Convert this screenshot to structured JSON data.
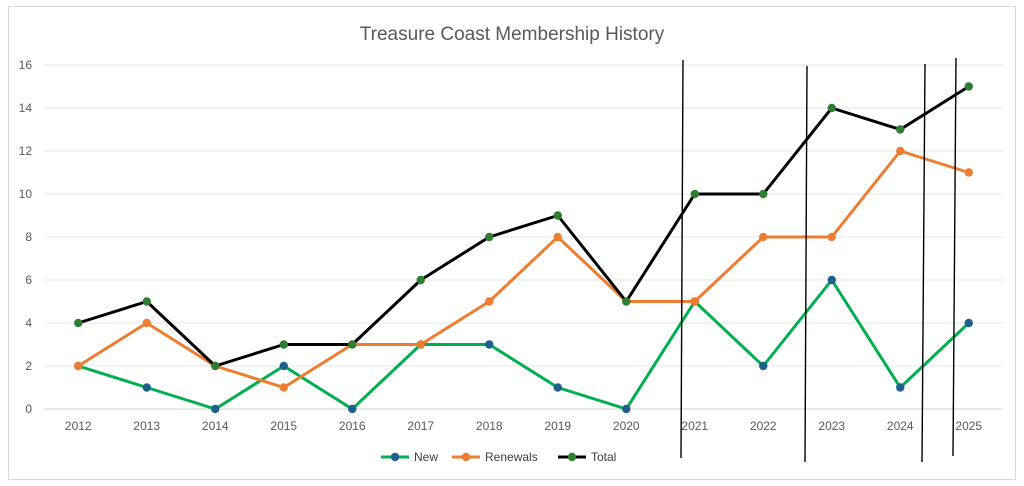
{
  "chart_data": {
    "type": "line",
    "title": "Treasure Coast Membership History",
    "xlabel": "",
    "ylabel": "",
    "categories": [
      "2012",
      "2013",
      "2014",
      "2015",
      "2016",
      "2017",
      "2018",
      "2019",
      "2020",
      "2021",
      "2022",
      "2023",
      "2024",
      "2025"
    ],
    "ylim": [
      0,
      16
    ],
    "yticks": [
      0,
      2,
      4,
      6,
      8,
      10,
      12,
      14,
      16
    ],
    "grid": true,
    "legend": "bottom",
    "series": [
      {
        "name": "New",
        "values": [
          2,
          1,
          0,
          2,
          0,
          3,
          3,
          1,
          0,
          5,
          2,
          6,
          1,
          4
        ],
        "line_color": "#00b050",
        "marker_color": "#1f5f8b"
      },
      {
        "name": "Renewals",
        "values": [
          2,
          4,
          2,
          1,
          3,
          3,
          5,
          8,
          5,
          5,
          8,
          8,
          12,
          11
        ],
        "line_color": "#ed7d31",
        "marker_color": "#ed7d31"
      },
      {
        "name": "Total",
        "values": [
          4,
          5,
          2,
          3,
          3,
          6,
          8,
          9,
          5,
          10,
          10,
          14,
          13,
          15
        ],
        "line_color": "#000000",
        "marker_color": "#2e7d32"
      }
    ]
  }
}
